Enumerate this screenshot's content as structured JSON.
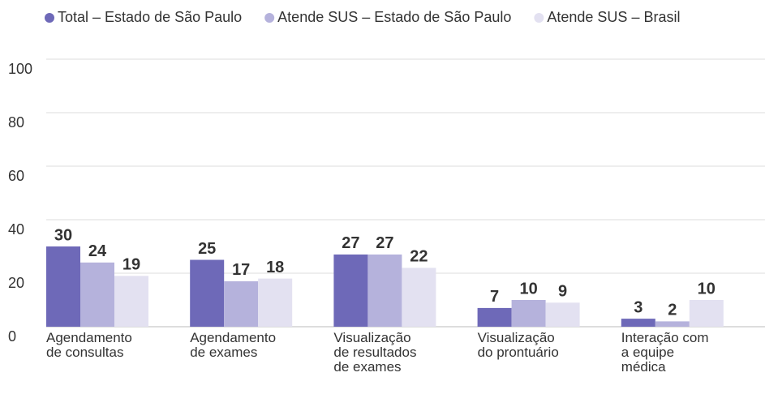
{
  "chart_data": {
    "type": "bar",
    "categories": [
      "Agendamento\nde consultas",
      "Agendamento\nde exames",
      "Visualização\nde resultados\nde exames",
      "Visualização\ndo prontuário",
      "Interação com\na equipe\nmédica"
    ],
    "series": [
      {
        "name": "Total – Estado de São Paulo",
        "color": "#6e69b8",
        "values": [
          30,
          25,
          27,
          7,
          3
        ]
      },
      {
        "name": "Atende SUS – Estado de São Paulo",
        "color": "#b5b2dc",
        "values": [
          24,
          17,
          27,
          10,
          2
        ]
      },
      {
        "name": "Atende SUS – Brasil",
        "color": "#e3e1f1",
        "values": [
          19,
          18,
          22,
          9,
          10
        ]
      }
    ],
    "ylim": [
      0,
      100
    ],
    "yticks": [
      0,
      20,
      40,
      60,
      80,
      100
    ],
    "grid": true,
    "legend": "top"
  }
}
